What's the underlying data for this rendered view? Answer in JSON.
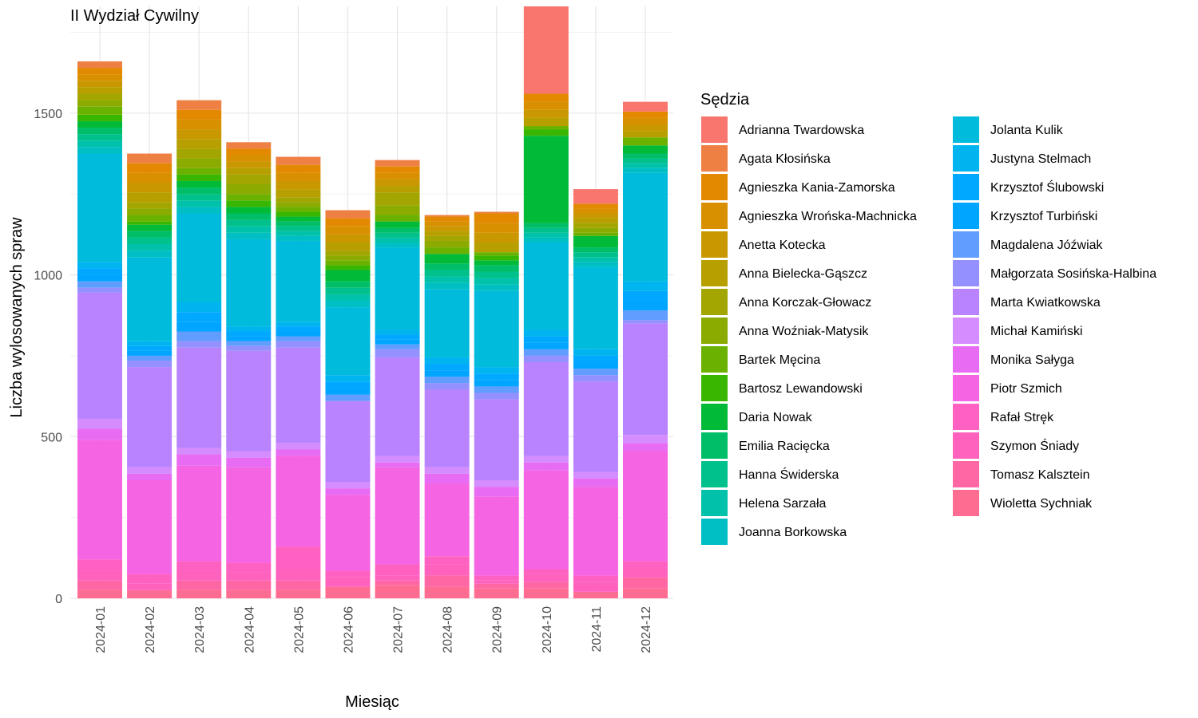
{
  "colors": [
    "#F8766D",
    "#EE8044",
    "#E38900",
    "#D89000",
    "#C99800",
    "#B79F00",
    "#A3A500",
    "#8CAB00",
    "#6BB100",
    "#39B600",
    "#00BA38",
    "#00BE67",
    "#00C08B",
    "#00C1A9",
    "#00BFC4",
    "#00BBDC",
    "#00B4EF",
    "#00A9FF",
    "#00A5FF",
    "#619CFF",
    "#9590FF",
    "#B983FF",
    "#D58CFF",
    "#E76BF3",
    "#F564E3",
    "#FF61C3",
    "#FF62BC",
    "#FF67A4",
    "#FF6C91"
  ],
  "chart_data": {
    "type": "bar",
    "stacked": true,
    "title": "II Wydział Cywilny",
    "xlabel": "Miesiąc",
    "ylabel": "Liczba wylosowanych spraw",
    "ylim": [
      0,
      1830
    ],
    "yticks": [
      0,
      500,
      1000,
      1500
    ],
    "grid": true,
    "legend_title": "Sędzia",
    "legend_position": "right",
    "categories": [
      "2024-01",
      "2024-02",
      "2024-03",
      "2024-04",
      "2024-05",
      "2024-06",
      "2024-07",
      "2024-08",
      "2024-09",
      "2024-10",
      "2024-11",
      "2024-12"
    ],
    "series": [
      {
        "name": "Adrianna Twardowska",
        "values": [
          0,
          0,
          0,
          0,
          0,
          0,
          0,
          0,
          0,
          270,
          45,
          30
        ]
      },
      {
        "name": "Agata Kłosińska",
        "values": [
          20,
          30,
          30,
          20,
          25,
          25,
          20,
          5,
          5,
          0,
          0,
          0
        ]
      },
      {
        "name": "Agnieszka Kania-Zamorska",
        "values": [
          20,
          30,
          30,
          20,
          25,
          25,
          20,
          15,
          30,
          25,
          15,
          20
        ]
      },
      {
        "name": "Agnieszka Wrońska-Machnicka",
        "values": [
          20,
          30,
          30,
          20,
          25,
          25,
          20,
          15,
          30,
          25,
          15,
          20
        ]
      },
      {
        "name": "Anetta Kotecka",
        "values": [
          20,
          30,
          30,
          20,
          25,
          25,
          20,
          15,
          30,
          25,
          15,
          20
        ]
      },
      {
        "name": "Anna Bielecka-Gąszcz",
        "values": [
          20,
          30,
          30,
          20,
          25,
          25,
          20,
          15,
          30,
          25,
          15,
          20
        ]
      },
      {
        "name": "Anna Korczak-Głowacz",
        "values": [
          20,
          20,
          30,
          30,
          15,
          15,
          40,
          15,
          0,
          0,
          15,
          0
        ]
      },
      {
        "name": "Anna Woźniak-Matysik",
        "values": [
          20,
          20,
          30,
          30,
          15,
          15,
          30,
          20,
          0,
          0,
          15,
          0
        ]
      },
      {
        "name": "Bartek Męcina",
        "values": [
          25,
          20,
          20,
          20,
          15,
          15,
          20,
          20,
          10,
          10,
          10,
          25
        ]
      },
      {
        "name": "Bartosz Lewandowski",
        "values": [
          20,
          10,
          20,
          20,
          15,
          15,
          0,
          0,
          15,
          20,
          0,
          0
        ]
      },
      {
        "name": "Daria Nowak",
        "values": [
          20,
          20,
          20,
          20,
          15,
          35,
          20,
          30,
          15,
          270,
          35,
          25
        ]
      },
      {
        "name": "Emilia Racięcka",
        "values": [
          20,
          20,
          20,
          20,
          15,
          20,
          15,
          20,
          20,
          15,
          15,
          15
        ]
      },
      {
        "name": "Hanna Świderska",
        "values": [
          20,
          20,
          20,
          20,
          15,
          20,
          15,
          20,
          20,
          15,
          15,
          15
        ]
      },
      {
        "name": "Helena Sarzała",
        "values": [
          20,
          20,
          20,
          20,
          15,
          20,
          15,
          20,
          20,
          15,
          15,
          15
        ]
      },
      {
        "name": "Joanna Borkowska",
        "values": [
          20,
          20,
          20,
          20,
          15,
          20,
          15,
          20,
          20,
          15,
          15,
          15
        ]
      },
      {
        "name": "Jolanta Kulik",
        "values": [
          335,
          260,
          275,
          270,
          250,
          210,
          255,
          210,
          235,
          270,
          255,
          335
        ]
      },
      {
        "name": "Justyna Stelmach",
        "values": [
          20,
          15,
          30,
          15,
          15,
          20,
          15,
          20,
          20,
          20,
          20,
          30
        ]
      },
      {
        "name": "Krzysztof Ślubowski",
        "values": [
          20,
          15,
          30,
          15,
          15,
          20,
          15,
          20,
          20,
          20,
          20,
          30
        ]
      },
      {
        "name": "Krzysztof Turbiński",
        "values": [
          20,
          15,
          30,
          15,
          15,
          20,
          15,
          20,
          20,
          20,
          20,
          30
        ]
      },
      {
        "name": "Magdalena Jóźwiak",
        "values": [
          20,
          15,
          30,
          15,
          15,
          20,
          15,
          20,
          20,
          20,
          20,
          30
        ]
      },
      {
        "name": "Małgorzata Sosińska-Halbina",
        "values": [
          15,
          20,
          20,
          15,
          20,
          0,
          25,
          20,
          20,
          20,
          20,
          10
        ]
      },
      {
        "name": "Marta Kwiatkowska",
        "values": [
          390,
          310,
          310,
          310,
          295,
          250,
          305,
          240,
          250,
          290,
          280,
          345
        ]
      },
      {
        "name": "Michał Kamiński",
        "values": [
          30,
          20,
          20,
          20,
          20,
          20,
          20,
          20,
          20,
          20,
          20,
          25
        ]
      },
      {
        "name": "Monika Sałyga",
        "values": [
          35,
          20,
          35,
          30,
          20,
          20,
          15,
          30,
          30,
          25,
          25,
          25
        ]
      },
      {
        "name": "Piotr Szmich",
        "values": [
          370,
          290,
          295,
          295,
          280,
          235,
          300,
          225,
          245,
          305,
          275,
          340
        ]
      },
      {
        "name": "Rafał Stręk",
        "values": [
          35,
          30,
          30,
          30,
          70,
          20,
          35,
          25,
          15,
          15,
          20,
          20
        ]
      },
      {
        "name": "Szymon Śniady",
        "values": [
          30,
          20,
          30,
          25,
          35,
          30,
          15,
          35,
          10,
          25,
          30,
          30
        ]
      },
      {
        "name": "Tomasz Kalsztein",
        "values": [
          30,
          0,
          30,
          30,
          30,
          0,
          15,
          35,
          15,
          20,
          0,
          35
        ]
      },
      {
        "name": "Wioletta Sychniak",
        "values": [
          25,
          25,
          25,
          25,
          25,
          35,
          40,
          35,
          30,
          30,
          20,
          30
        ]
      }
    ]
  }
}
